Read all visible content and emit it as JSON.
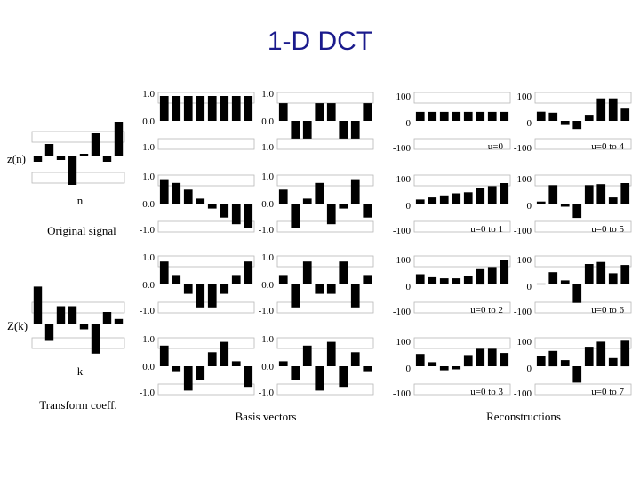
{
  "slide": {
    "title": "1-D DCT",
    "title_color": "#1a1a8c",
    "bar_color": "#000000"
  },
  "left": {
    "signal_ylabel": "z(n)",
    "signal_xlabel": "n",
    "signal_caption": "Original signal",
    "signal_values": [
      -0.6,
      1.4,
      -0.4,
      -3.2,
      0.3,
      2.6,
      -0.6,
      3.9
    ],
    "coeff_ylabel": "Z(k)",
    "coeff_xlabel": "k",
    "coeff_caption": "Transform coeff.",
    "coeff_values": [
      3.2,
      -1.5,
      1.5,
      1.5,
      -0.5,
      -2.6,
      1.0,
      0.4
    ]
  },
  "basis": {
    "caption": "Basis vectors",
    "tick_top": "1.0",
    "tick_mid": "0.0",
    "tick_bottom": "-1.0",
    "items": [
      {
        "u": 0,
        "values": [
          1.0,
          1.0,
          1.0,
          1.0,
          1.0,
          1.0,
          1.0,
          1.0
        ]
      },
      {
        "u": 1,
        "values": [
          0.98,
          0.83,
          0.56,
          0.2,
          -0.2,
          -0.56,
          -0.83,
          -0.98
        ]
      },
      {
        "u": 2,
        "values": [
          0.92,
          0.38,
          -0.38,
          -0.92,
          -0.92,
          -0.38,
          0.38,
          0.92
        ]
      },
      {
        "u": 3,
        "values": [
          0.83,
          -0.2,
          -0.98,
          -0.56,
          0.56,
          0.98,
          0.2,
          -0.83
        ]
      },
      {
        "u": 4,
        "values": [
          0.71,
          -0.71,
          -0.71,
          0.71,
          0.71,
          -0.71,
          -0.71,
          0.71
        ]
      },
      {
        "u": 5,
        "values": [
          0.56,
          -0.98,
          0.2,
          0.83,
          -0.83,
          -0.2,
          0.98,
          -0.56
        ]
      },
      {
        "u": 6,
        "values": [
          0.38,
          -0.92,
          0.92,
          -0.38,
          -0.38,
          0.92,
          -0.92,
          0.38
        ]
      },
      {
        "u": 7,
        "values": [
          0.2,
          -0.56,
          0.83,
          -0.98,
          0.98,
          -0.83,
          0.56,
          -0.2
        ]
      }
    ]
  },
  "reconstructions": {
    "caption": "Reconstructions",
    "tick_top": "100",
    "tick_mid": "0",
    "tick_bottom": "-100",
    "items": [
      {
        "label": "u=0",
        "values": [
          44,
          44,
          44,
          44,
          44,
          44,
          44,
          44
        ]
      },
      {
        "label": "u=0 to 1",
        "values": [
          20,
          30,
          40,
          50,
          55,
          75,
          85,
          100
        ]
      },
      {
        "label": "u=0 to 2",
        "values": [
          50,
          35,
          30,
          30,
          40,
          75,
          85,
          120
        ]
      },
      {
        "label": "u=0 to 3",
        "values": [
          60,
          20,
          -20,
          -15,
          55,
          85,
          85,
          65
        ]
      },
      {
        "label": "u=0 to 4",
        "values": [
          45,
          40,
          -20,
          -40,
          30,
          110,
          110,
          60
        ]
      },
      {
        "label": "u=0 to 5",
        "values": [
          10,
          90,
          -15,
          -70,
          90,
          95,
          30,
          100
        ]
      },
      {
        "label": "u=0 to 6",
        "values": [
          5,
          60,
          20,
          -90,
          100,
          110,
          55,
          95
        ]
      },
      {
        "label": "u=0 to 7",
        "values": [
          50,
          75,
          30,
          -80,
          95,
          120,
          40,
          125
        ]
      }
    ]
  }
}
